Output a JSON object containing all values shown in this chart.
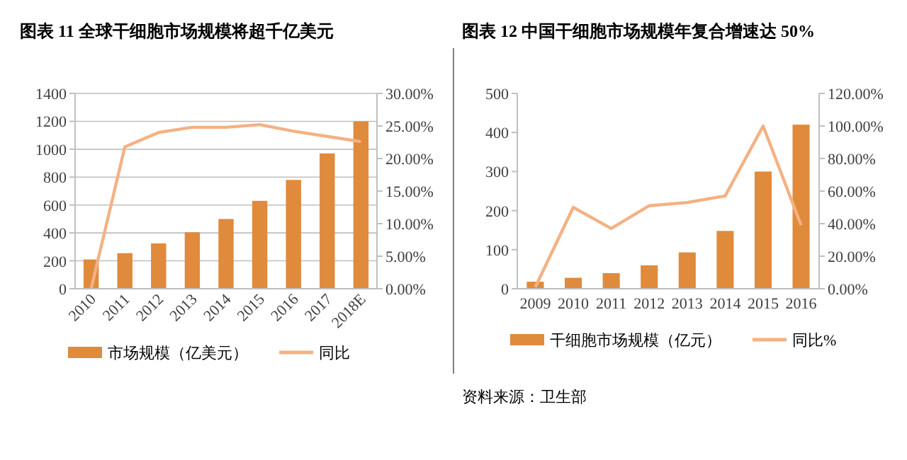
{
  "chart_data": [
    {
      "type": "bar",
      "title": "图表 11 全球干细胞市场规模将超千亿美元",
      "categories": [
        "2010",
        "2011",
        "2012",
        "2013",
        "2014",
        "2015",
        "2016",
        "2017",
        "2018E"
      ],
      "series": [
        {
          "name": "市场规模（亿美元）",
          "color": "#e08a3c",
          "values": [
            210,
            255,
            325,
            405,
            500,
            630,
            780,
            970,
            1200
          ]
        },
        {
          "name": "同比",
          "type": "line",
          "axis": "y2",
          "color": "#f4b183",
          "values": [
            0,
            21.8,
            24,
            24.8,
            24.8,
            25.2,
            24.2,
            23.4,
            22.6
          ]
        }
      ],
      "ylim": [
        0,
        1400
      ],
      "yticks": [
        0,
        200,
        400,
        600,
        800,
        1000,
        1200,
        1400
      ],
      "y2lim": [
        0,
        30
      ],
      "y2ticks": [
        {
          "value": 0,
          "label": "0.00%"
        },
        {
          "value": 5,
          "label": "5.00%"
        },
        {
          "value": 10,
          "label": "10.00%"
        },
        {
          "value": 15,
          "label": "15.00%"
        },
        {
          "value": 20,
          "label": "20.00%"
        },
        {
          "value": 25,
          "label": "25.00%"
        },
        {
          "value": 30,
          "label": "30.00%"
        }
      ],
      "grid": "y",
      "legend": "bottom",
      "marker": "none"
    },
    {
      "type": "bar",
      "title": "图表 12 中国干细胞市场规模年复合增速达 50%",
      "categories": [
        "2009",
        "2010",
        "2011",
        "2012",
        "2013",
        "2014",
        "2015",
        "2016"
      ],
      "series": [
        {
          "name": "干细胞市场规模（亿元）",
          "color": "#e08a3c",
          "values": [
            18,
            28,
            40,
            60,
            93,
            148,
            300,
            420
          ]
        },
        {
          "name": "同比%",
          "type": "line",
          "axis": "y2",
          "color": "#f4b183",
          "values": [
            1,
            50,
            37,
            51,
            53,
            57,
            100,
            39
          ]
        }
      ],
      "ylim": [
        0,
        500
      ],
      "yticks": [
        0,
        100,
        200,
        300,
        400,
        500
      ],
      "y2lim": [
        0,
        120
      ],
      "y2ticks": [
        {
          "value": 0,
          "label": "0.00%"
        },
        {
          "value": 20,
          "label": "20.00%"
        },
        {
          "value": 40,
          "label": "40.00%"
        },
        {
          "value": 60,
          "label": "60.00%"
        },
        {
          "value": 80,
          "label": "80.00%"
        },
        {
          "value": 100,
          "label": "100.00%"
        },
        {
          "value": 120,
          "label": "120.00%"
        }
      ],
      "grid": false,
      "legend": "bottom",
      "marker": "none",
      "annotations": [
        "资料来源：卫生部"
      ]
    }
  ]
}
